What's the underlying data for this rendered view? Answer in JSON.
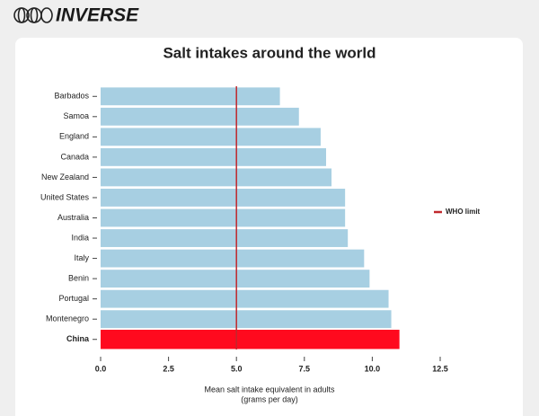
{
  "brand": "INVERSE",
  "chart_data": {
    "type": "hbar",
    "title": "Salt intakes around the world",
    "categories": [
      "Barbados",
      "Samoa",
      "England",
      "Canada",
      "New Zealand",
      "United States",
      "Australia",
      "India",
      "Italy",
      "Benin",
      "Portugal",
      "Montenegro",
      "China"
    ],
    "values": [
      6.6,
      7.3,
      8.1,
      8.3,
      8.5,
      9.0,
      9.0,
      9.1,
      9.7,
      9.9,
      10.6,
      10.7,
      11.0
    ],
    "colors": [
      "#a7cfe2",
      "#a7cfe2",
      "#a7cfe2",
      "#a7cfe2",
      "#a7cfe2",
      "#a7cfe2",
      "#a7cfe2",
      "#a7cfe2",
      "#a7cfe2",
      "#a7cfe2",
      "#a7cfe2",
      "#a7cfe2",
      "#ff0a1e"
    ],
    "xlim": [
      0,
      12.5
    ],
    "xticks": [
      {
        "value": 0,
        "label": "0.0"
      },
      2.5,
      {
        "value": 5,
        "label": "5.0"
      },
      7.5,
      {
        "value": 10,
        "label": "10.0"
      },
      12.5
    ],
    "xlabel": [
      "Mean salt intake equivalent in adults",
      "(grams per day)"
    ],
    "reference_line": {
      "name": "WHO limit",
      "value": 5,
      "color": "#c0282d"
    },
    "legend": "right"
  }
}
